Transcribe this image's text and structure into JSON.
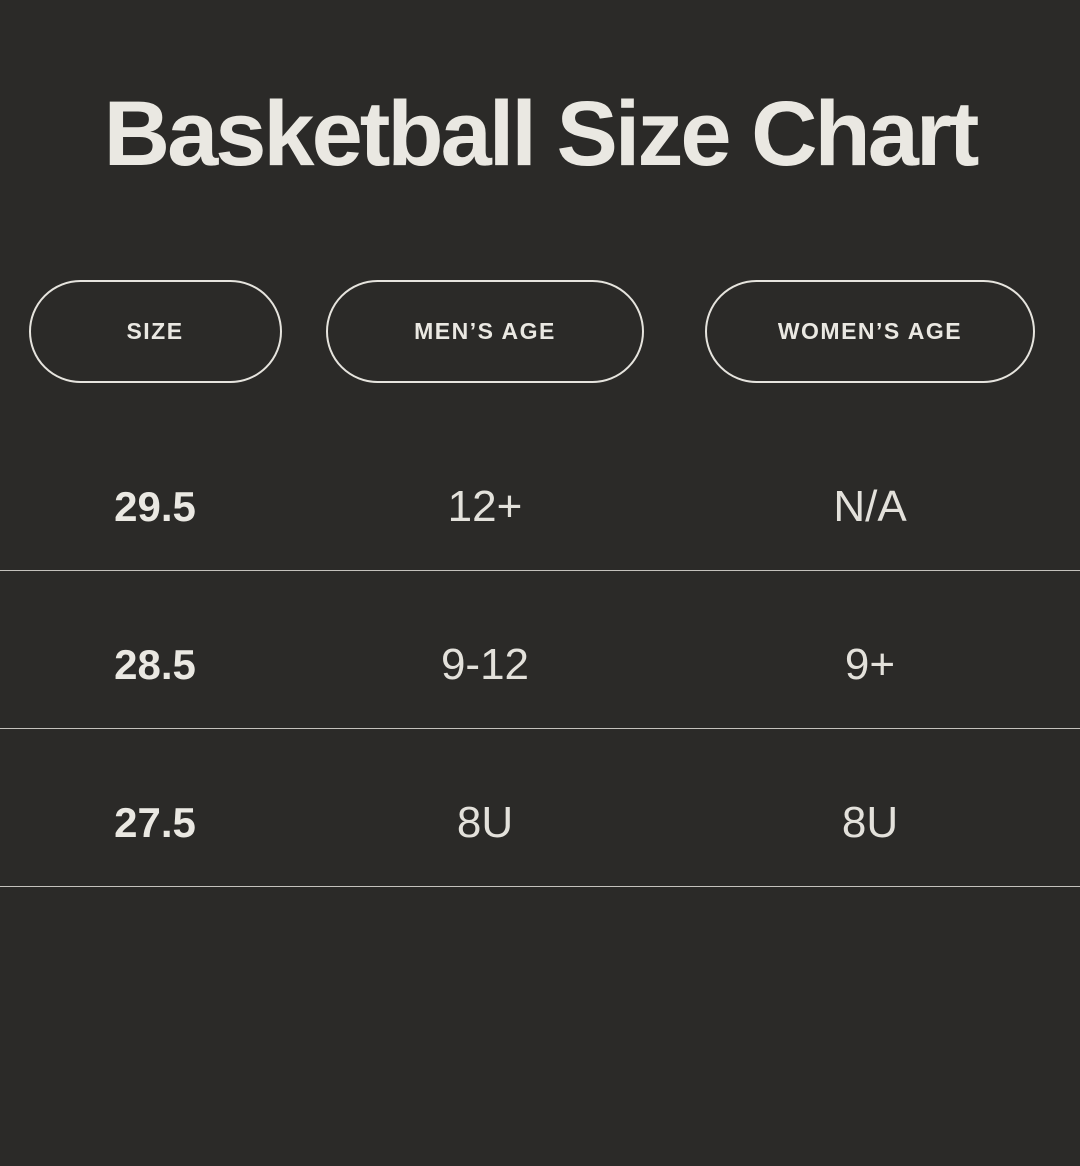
{
  "title": "Basketball Size Chart",
  "colors": {
    "background": "#2B2A28",
    "text": "#EAE8E2",
    "text_soft": "#E3E1DB",
    "divider": "#DFDDD7",
    "pill_border": "#E6E4DE"
  },
  "chart_data": {
    "type": "table",
    "title": "Basketball Size Chart",
    "columns": [
      "SIZE",
      "MEN’S AGE",
      "WOMEN’S AGE"
    ],
    "rows": [
      [
        "29.5",
        "12+",
        "N/A"
      ],
      [
        "28.5",
        "9-12",
        "9+"
      ],
      [
        "27.5",
        "8U",
        "8U"
      ]
    ]
  }
}
